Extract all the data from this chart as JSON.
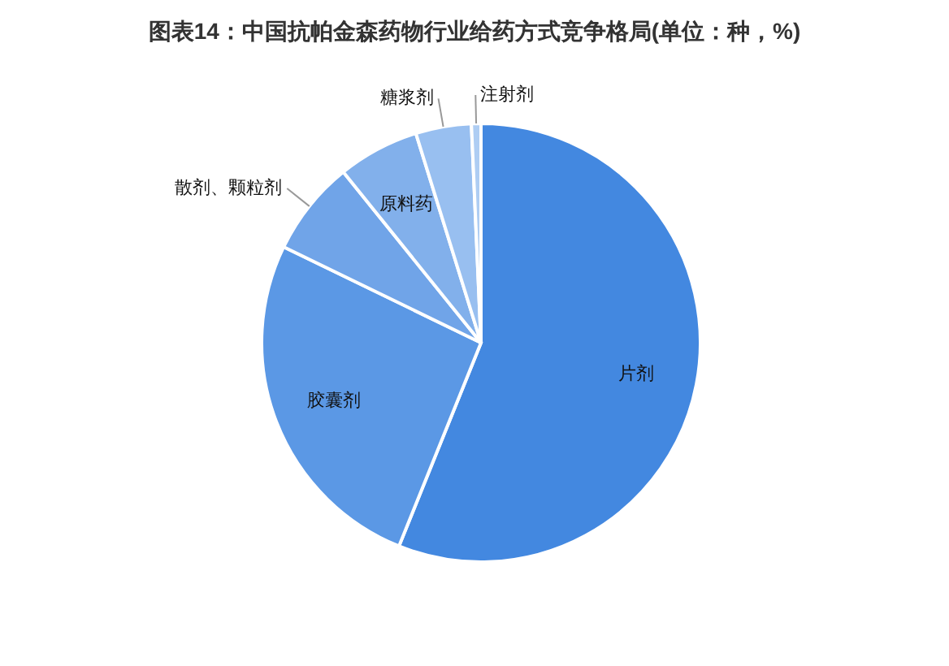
{
  "chart_data": {
    "type": "pie",
    "title": "图表14：中国抗帕金森药物行业给药方式竞争格局(单位：种，%)",
    "categories": [
      "片剂",
      "胶囊剂",
      "散剂、颗粒剂",
      "原料药",
      "糖浆剂",
      "注射剂"
    ],
    "values": [
      56.1,
      26.1,
      7.0,
      6.0,
      4.1,
      0.7
    ],
    "colors": [
      "#4388e0",
      "#5b98e5",
      "#70a4e8",
      "#82b0eb",
      "#98bff0",
      "#aecdf3"
    ],
    "legend": false
  }
}
